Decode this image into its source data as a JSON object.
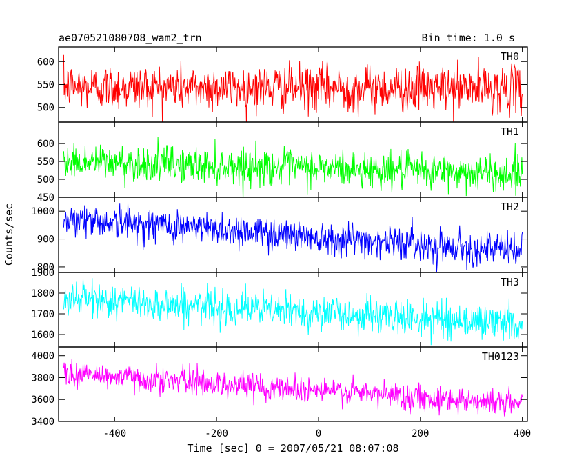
{
  "header": {
    "title": "ae070521080708_wam2_trn",
    "bin_time": "Bin time: 1.0 s"
  },
  "chart_data": {
    "type": "line",
    "title": "ae070521080708_wam2_trn",
    "subtitle": "Bin time: 1.0 s",
    "xlabel": "Time [sec] 0 = 2007/05/21 08:07:08",
    "ylabel": "Counts/sec",
    "xlim": [
      -510,
      410
    ],
    "x_ticks": [
      -400,
      -200,
      0,
      200,
      400
    ],
    "x_range": [
      -500,
      400
    ],
    "bin_seconds": 1.0,
    "panels": [
      {
        "name": "TH0",
        "color": "#ff0000",
        "ylim": [
          468,
          632
        ],
        "y_ticks": [
          500,
          550,
          600
        ],
        "trend": {
          "start": 545,
          "end": 540
        },
        "noise_sd": 25
      },
      {
        "name": "TH1",
        "color": "#00ff00",
        "ylim": [
          450,
          660
        ],
        "y_ticks": [
          450,
          500,
          550,
          600
        ],
        "trend": {
          "start": 550,
          "end": 515
        },
        "noise_sd": 25
      },
      {
        "name": "TH2",
        "color": "#0000ff",
        "ylim": [
          780,
          1050
        ],
        "y_ticks": [
          800,
          900,
          1000
        ],
        "trend": {
          "start": 975,
          "end": 855
        },
        "noise_sd": 30
      },
      {
        "name": "TH3",
        "color": "#00ffff",
        "ylim": [
          1540,
          1900
        ],
        "y_ticks": [
          1600,
          1700,
          1800,
          1900
        ],
        "trend": {
          "start": 1775,
          "end": 1650
        },
        "noise_sd": 42
      },
      {
        "name": "TH0123",
        "color": "#ff00ff",
        "ylim": [
          3400,
          4080
        ],
        "y_ticks": [
          3400,
          3600,
          3800,
          4000
        ],
        "trend": {
          "start": 3840,
          "end": 3560
        },
        "noise_sd": 60
      }
    ]
  }
}
